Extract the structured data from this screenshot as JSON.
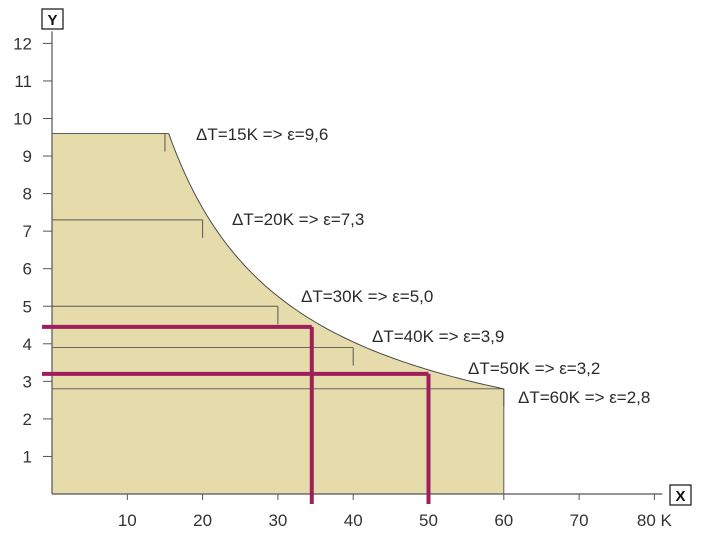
{
  "chart_data": {
    "type": "area",
    "x_axis": {
      "label": "X",
      "range": [
        0,
        80
      ],
      "ticks": [
        10,
        20,
        30,
        40,
        50,
        60,
        70,
        80
      ],
      "tick_labels": [
        "10",
        "20",
        "30",
        "40",
        "50",
        "60",
        "70",
        "80 K"
      ]
    },
    "y_axis": {
      "label": "Y",
      "range": [
        0,
        12
      ],
      "ticks": [
        1,
        2,
        3,
        4,
        5,
        6,
        7,
        8,
        9,
        10,
        11,
        12
      ],
      "tick_labels": [
        "1",
        "2",
        "3",
        "4",
        "5",
        "6",
        "7",
        "8",
        "9",
        "10",
        "11",
        "12"
      ]
    },
    "region": {
      "fill": "#e6dbab",
      "x_start": 0,
      "x_end": 60,
      "cap_y": 9.6,
      "curve_start_x": 15.5
    },
    "levels": [
      {
        "dt": 15,
        "eps": 9.6,
        "label": "ΔT=15K => ε=9,6"
      },
      {
        "dt": 20,
        "eps": 7.3,
        "label": "ΔT=20K => ε=7,3"
      },
      {
        "dt": 30,
        "eps": 5.0,
        "label": "ΔT=30K => ε=5,0"
      },
      {
        "dt": 40,
        "eps": 3.9,
        "label": "ΔT=40K => ε=3,9"
      },
      {
        "dt": 50,
        "eps": 3.2,
        "label": "ΔT=50K => ε=3,2"
      },
      {
        "dt": 60,
        "eps": 2.8,
        "label": "ΔT=60K => ε=2,8"
      }
    ],
    "highlight_lines": [
      {
        "x": 34.5,
        "y": 4.45
      },
      {
        "x": 50,
        "y": 3.2
      }
    ],
    "highlight_color": "#9e1f5a",
    "grid": false
  }
}
